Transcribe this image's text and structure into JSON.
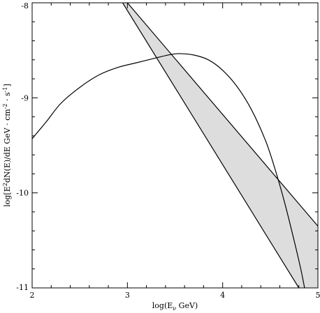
{
  "chart_data": {
    "type": "line",
    "title": "",
    "xlabel": "log(E_ν GeV)",
    "xlabel_parts": {
      "pre": "log(E",
      "sub": "ν",
      "post": " GeV)"
    },
    "ylabel": "log[E²dN(E)/dE GeV · cm⁻² · s⁻¹]",
    "ylabel_parts": {
      "a": "log[E",
      "a_sup": "2",
      "b": "dN(E)/dE GeV · cm",
      "b_sup": "-2",
      "c": " · s",
      "c_sup": "-1",
      "d": "]"
    },
    "xlim": [
      2,
      5
    ],
    "ylim": [
      -11,
      -8
    ],
    "x_ticks": [
      2,
      3,
      4,
      5
    ],
    "x_tick_labels": [
      "2",
      "3",
      "4",
      "5"
    ],
    "y_ticks": [
      -8,
      -9,
      -10,
      -11
    ],
    "y_tick_labels": [
      "-8",
      "-9",
      "-10",
      "-11"
    ],
    "x_minor_step": 0.2,
    "y_minor_step": 0.2,
    "grid": false,
    "band": {
      "fill": "#dddddd",
      "stroke": "#000000",
      "upper": {
        "x": [
          3.0,
          5.0
        ],
        "y": [
          -8.0,
          -10.35
        ]
      },
      "lower": {
        "x": [
          2.95,
          4.8
        ],
        "y": [
          -8.0,
          -11.0
        ]
      }
    },
    "series": [
      {
        "color": "#000000",
        "x": [
          2.0,
          2.15,
          2.3,
          2.5,
          2.7,
          2.9,
          3.1,
          3.3,
          3.45,
          3.55,
          3.7,
          3.85,
          4.0,
          4.15,
          4.3,
          4.45,
          4.55,
          4.65,
          4.75,
          4.82,
          4.86
        ],
        "y": [
          -9.43,
          -9.25,
          -9.06,
          -8.89,
          -8.76,
          -8.68,
          -8.63,
          -8.58,
          -8.545,
          -8.535,
          -8.55,
          -8.6,
          -8.71,
          -8.88,
          -9.12,
          -9.45,
          -9.75,
          -10.1,
          -10.5,
          -10.8,
          -11.0
        ]
      }
    ]
  }
}
